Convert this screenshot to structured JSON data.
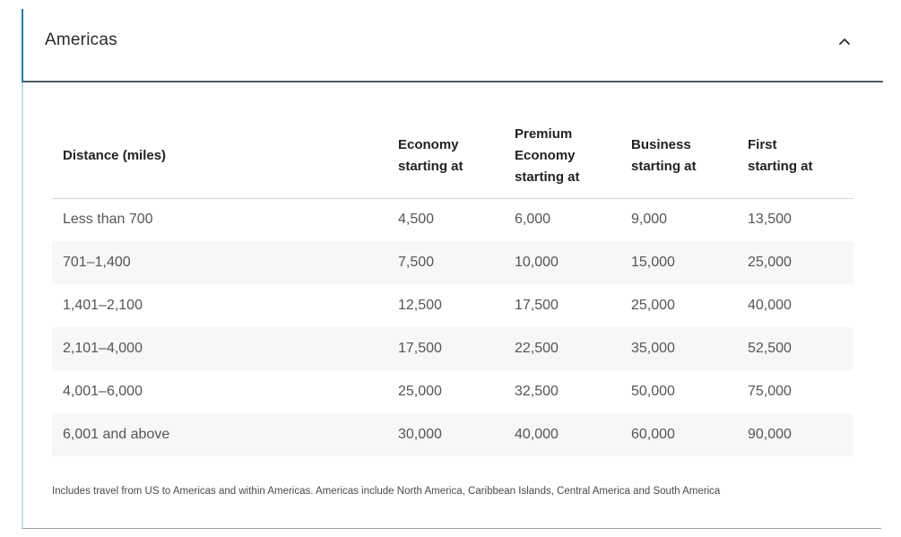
{
  "section": {
    "title": "Americas",
    "toggle_icon": "chevron-up-icon"
  },
  "table": {
    "headers": [
      [
        "Distance (miles)"
      ],
      [
        "Economy",
        "starting at"
      ],
      [
        "Premium",
        "Economy",
        "starting at"
      ],
      [
        "Business",
        "starting at"
      ],
      [
        "First",
        "starting at"
      ]
    ],
    "rows": [
      [
        "Less than 700",
        "4,500",
        "6,000",
        "9,000",
        "13,500"
      ],
      [
        "701–1,400",
        "7,500",
        "10,000",
        "15,000",
        "25,000"
      ],
      [
        "1,401–2,100",
        "12,500",
        "17,500",
        "25,000",
        "40,000"
      ],
      [
        "2,101–4,000",
        "17,500",
        "22,500",
        "35,000",
        "52,500"
      ],
      [
        "4,001–6,000",
        "25,000",
        "32,500",
        "50,000",
        "75,000"
      ],
      [
        "6,001 and above",
        "30,000",
        "40,000",
        "60,000",
        "90,000"
      ]
    ]
  },
  "footnote": "Includes travel from US to Americas and within Americas. Americas include North America, Caribbean Islands, Central America and South America"
}
